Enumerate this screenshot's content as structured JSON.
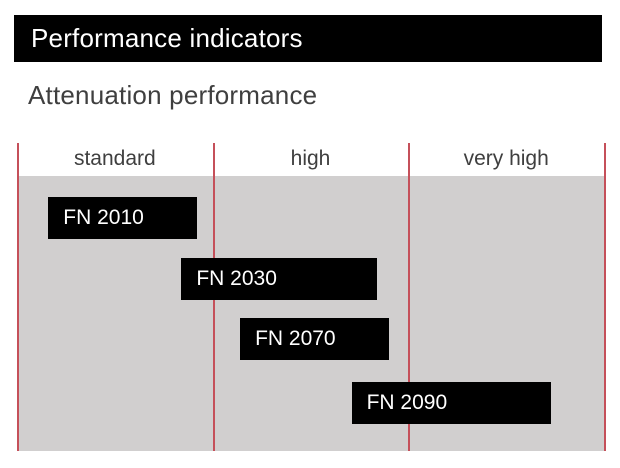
{
  "header": {
    "title": "Performance indicators"
  },
  "subtitle": "Attenuation performance",
  "colors": {
    "title_bar_bg": "#000000",
    "title_text": "#ffffff",
    "subtitle_text": "#3f3f3f",
    "plot_bg": "#d1cfcf",
    "boundary_line": "#c5505a",
    "bar_bg": "#000000",
    "bar_text": "#ffffff"
  },
  "chart_data": {
    "type": "bar",
    "variant": "horizontal-range (Gantt-style product range chart)",
    "title": "Attenuation performance",
    "categories": [
      "standard",
      "high",
      "very high"
    ],
    "x_unit": "category index: 0 = left edge of 'standard', 1 = standard/high boundary, 2 = high/very-high boundary, 3 = right edge of 'very high'",
    "xlim": [
      0,
      3
    ],
    "series": [
      {
        "name": "FN 2010",
        "range": [
          0.16,
          0.92
        ]
      },
      {
        "name": "FN 2030",
        "range": [
          0.84,
          1.84
        ]
      },
      {
        "name": "FN 2070",
        "range": [
          1.14,
          1.9
        ]
      },
      {
        "name": "FN 2090",
        "range": [
          1.71,
          2.73
        ]
      }
    ],
    "grid": "vertical red lines at each category boundary (4 lines)",
    "legend": "none (labels printed inside bars)"
  }
}
